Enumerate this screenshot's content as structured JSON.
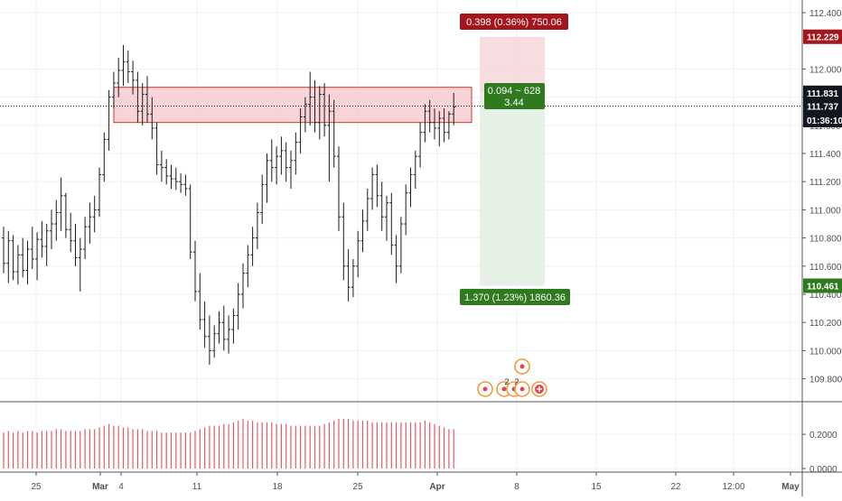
{
  "colors": {
    "background": "#ffffff",
    "grid": "#eef0f3",
    "bar": "#1b1b1b",
    "zone_fill": "#f5c6cb",
    "zone_stroke": "#c0392b",
    "stop_fill": "#f4d7da",
    "target_fill": "#e3efe2",
    "stop_label": "#a5161c",
    "target_label": "#2f7a1f",
    "price_tag_dark": "#131722",
    "price_tag_red": "#a5161c",
    "price_tag_green": "#2f7a1f",
    "volume": "#e05c6a",
    "axis_text": "#4a4f58",
    "event_icon": "#f29a3a"
  },
  "chart_data": {
    "type": "bar",
    "subtype": "ohlc",
    "grid": true,
    "price_axis": {
      "position": "right",
      "ticks": [
        "112.400",
        "112.000",
        "111.800",
        "111.600",
        "111.400",
        "111.200",
        "111.000",
        "110.800",
        "110.600",
        "110.400",
        "110.200",
        "110.000",
        "109.800"
      ],
      "range": [
        109.65,
        112.49
      ]
    },
    "volume_axis": {
      "ticks": [
        "0.2000",
        "0.0000"
      ],
      "range": [
        0,
        0.38
      ]
    },
    "time_axis": {
      "ticks": [
        "25",
        "Mar",
        "4",
        "11",
        "18",
        "25",
        "Apr",
        "8",
        "15",
        "22",
        "12:00",
        "May"
      ],
      "bold_ticks": [
        "Mar",
        "Apr",
        "May"
      ]
    },
    "price_labels": [
      {
        "text": "112.229",
        "value": 112.229,
        "style": "red"
      },
      {
        "text": "111.831",
        "value": 111.831,
        "style": "dark"
      },
      {
        "text": "111.737",
        "value": 111.737,
        "style": "dark"
      },
      {
        "text": "01:36:10",
        "value": 111.6,
        "style": "dark"
      },
      {
        "text": "110.461",
        "value": 110.461,
        "style": "green"
      }
    ],
    "current_price": 111.737,
    "resistance_zone": {
      "low": 111.62,
      "high": 111.87
    },
    "position": {
      "entry": 111.831,
      "stop": 112.229,
      "target": 110.461,
      "stop_label": "0.398 (0.36%) 750.06",
      "target_label": "1.370 (1.23%) 1860.36",
      "center_label_line1": "0.094 ~ 628",
      "center_label_line2": "3.44"
    },
    "events": [
      {
        "kind": "flag",
        "count": ""
      },
      {
        "kind": "flag",
        "count": "2"
      },
      {
        "kind": "flag",
        "count": "2"
      },
      {
        "kind": "flag",
        "count": ""
      },
      {
        "kind": "flag",
        "count": ""
      },
      {
        "kind": "plus",
        "count": ""
      }
    ],
    "ohlc": [
      [
        110.8,
        110.88,
        110.55,
        110.62
      ],
      [
        110.62,
        110.85,
        110.48,
        110.78
      ],
      [
        110.78,
        110.82,
        110.5,
        110.56
      ],
      [
        110.56,
        110.75,
        110.47,
        110.68
      ],
      [
        110.68,
        110.8,
        110.52,
        110.57
      ],
      [
        110.57,
        110.78,
        110.47,
        110.72
      ],
      [
        110.72,
        110.88,
        110.58,
        110.65
      ],
      [
        110.65,
        110.84,
        110.5,
        110.79
      ],
      [
        110.79,
        110.92,
        110.66,
        110.74
      ],
      [
        110.74,
        110.9,
        110.6,
        110.85
      ],
      [
        110.85,
        111.0,
        110.72,
        110.9
      ],
      [
        110.9,
        111.07,
        110.78,
        110.98
      ],
      [
        110.98,
        111.23,
        110.85,
        111.1
      ],
      [
        111.1,
        111.12,
        110.8,
        110.86
      ],
      [
        110.86,
        110.98,
        110.7,
        110.78
      ],
      [
        110.78,
        110.9,
        110.6,
        110.66
      ],
      [
        110.66,
        110.8,
        110.42,
        110.72
      ],
      [
        110.72,
        110.95,
        110.65,
        110.88
      ],
      [
        110.88,
        111.05,
        110.76,
        110.95
      ],
      [
        110.95,
        111.1,
        110.84,
        111.0
      ],
      [
        111.0,
        111.3,
        110.95,
        111.25
      ],
      [
        111.25,
        111.55,
        111.2,
        111.5
      ],
      [
        111.5,
        111.85,
        111.42,
        111.8
      ],
      [
        111.8,
        111.98,
        111.72,
        111.9
      ],
      [
        111.9,
        112.08,
        111.8,
        111.99
      ],
      [
        111.99,
        112.17,
        111.88,
        112.05
      ],
      [
        112.05,
        112.13,
        111.9,
        111.98
      ],
      [
        111.98,
        112.06,
        111.82,
        111.92
      ],
      [
        111.92,
        111.98,
        111.62,
        111.7
      ],
      [
        111.7,
        111.9,
        111.6,
        111.82
      ],
      [
        111.82,
        111.95,
        111.62,
        111.68
      ],
      [
        111.68,
        111.8,
        111.5,
        111.58
      ],
      [
        111.58,
        111.62,
        111.25,
        111.32
      ],
      [
        111.32,
        111.42,
        111.2,
        111.3
      ],
      [
        111.3,
        111.36,
        111.18,
        111.24
      ],
      [
        111.24,
        111.32,
        111.15,
        111.22
      ],
      [
        111.22,
        111.3,
        111.14,
        111.2
      ],
      [
        111.2,
        111.26,
        111.12,
        111.18
      ],
      [
        111.18,
        111.25,
        111.1,
        111.15
      ],
      [
        111.15,
        111.18,
        110.65,
        110.7
      ],
      [
        110.7,
        110.78,
        110.35,
        110.42
      ],
      [
        110.42,
        110.55,
        110.15,
        110.22
      ],
      [
        110.22,
        110.35,
        110.02,
        110.1
      ],
      [
        110.1,
        110.25,
        109.9,
        110.0
      ],
      [
        110.0,
        110.18,
        109.95,
        110.12
      ],
      [
        110.12,
        110.28,
        110.05,
        110.2
      ],
      [
        110.2,
        110.32,
        110.0,
        110.08
      ],
      [
        110.08,
        110.25,
        109.98,
        110.15
      ],
      [
        110.15,
        110.3,
        110.05,
        110.25
      ],
      [
        110.25,
        110.48,
        110.15,
        110.4
      ],
      [
        110.4,
        110.62,
        110.3,
        110.55
      ],
      [
        110.55,
        110.75,
        110.45,
        110.68
      ],
      [
        110.68,
        110.88,
        110.6,
        110.8
      ],
      [
        110.8,
        111.05,
        110.72,
        110.98
      ],
      [
        110.98,
        111.25,
        110.9,
        111.18
      ],
      [
        111.18,
        111.4,
        111.05,
        111.35
      ],
      [
        111.35,
        111.5,
        111.2,
        111.3
      ],
      [
        111.3,
        111.45,
        111.18,
        111.38
      ],
      [
        111.38,
        111.52,
        111.25,
        111.42
      ],
      [
        111.42,
        111.48,
        111.2,
        111.3
      ],
      [
        111.3,
        111.42,
        111.15,
        111.35
      ],
      [
        111.35,
        111.55,
        111.25,
        111.48
      ],
      [
        111.48,
        111.72,
        111.4,
        111.66
      ],
      [
        111.66,
        111.8,
        111.55,
        111.75
      ],
      [
        111.75,
        111.98,
        111.6,
        111.8
      ],
      [
        111.8,
        111.92,
        111.55,
        111.62
      ],
      [
        111.62,
        111.88,
        111.5,
        111.82
      ],
      [
        111.82,
        111.9,
        111.52,
        111.6
      ],
      [
        111.6,
        111.82,
        111.2,
        111.7
      ],
      [
        111.7,
        111.78,
        111.3,
        111.38
      ],
      [
        111.38,
        111.45,
        110.85,
        110.95
      ],
      [
        110.95,
        111.05,
        110.5,
        110.6
      ],
      [
        110.6,
        110.72,
        110.35,
        110.45
      ],
      [
        110.45,
        110.65,
        110.38,
        110.6
      ],
      [
        110.6,
        110.85,
        110.52,
        110.78
      ],
      [
        110.78,
        111.0,
        110.7,
        110.92
      ],
      [
        110.92,
        111.15,
        110.85,
        111.08
      ],
      [
        111.08,
        111.3,
        111.0,
        111.25
      ],
      [
        111.25,
        111.32,
        111.02,
        111.1
      ],
      [
        111.1,
        111.2,
        110.85,
        110.95
      ],
      [
        110.95,
        111.1,
        110.78,
        111.05
      ],
      [
        111.05,
        111.12,
        110.68,
        110.75
      ],
      [
        110.75,
        110.82,
        110.48,
        110.6
      ],
      [
        110.6,
        110.95,
        110.55,
        110.9
      ],
      [
        110.9,
        111.18,
        110.82,
        111.12
      ],
      [
        111.12,
        111.3,
        111.02,
        111.25
      ],
      [
        111.25,
        111.42,
        111.15,
        111.38
      ],
      [
        111.38,
        111.62,
        111.3,
        111.55
      ],
      [
        111.55,
        111.75,
        111.48,
        111.7
      ],
      [
        111.7,
        111.78,
        111.55,
        111.62
      ],
      [
        111.62,
        111.72,
        111.5,
        111.58
      ],
      [
        111.58,
        111.7,
        111.45,
        111.65
      ],
      [
        111.65,
        111.72,
        111.48,
        111.55
      ],
      [
        111.55,
        111.7,
        111.5,
        111.68
      ],
      [
        111.68,
        111.83,
        111.6,
        111.73
      ]
    ],
    "volume": [
      0.21,
      0.22,
      0.21,
      0.22,
      0.21,
      0.22,
      0.22,
      0.21,
      0.22,
      0.22,
      0.22,
      0.23,
      0.23,
      0.22,
      0.22,
      0.22,
      0.22,
      0.23,
      0.23,
      0.23,
      0.24,
      0.25,
      0.26,
      0.25,
      0.25,
      0.24,
      0.24,
      0.23,
      0.23,
      0.23,
      0.22,
      0.22,
      0.22,
      0.21,
      0.21,
      0.21,
      0.21,
      0.21,
      0.21,
      0.21,
      0.22,
      0.23,
      0.24,
      0.25,
      0.25,
      0.25,
      0.26,
      0.26,
      0.27,
      0.28,
      0.29,
      0.28,
      0.28,
      0.27,
      0.27,
      0.27,
      0.27,
      0.26,
      0.26,
      0.26,
      0.25,
      0.25,
      0.25,
      0.25,
      0.25,
      0.25,
      0.25,
      0.26,
      0.27,
      0.28,
      0.29,
      0.29,
      0.29,
      0.28,
      0.28,
      0.28,
      0.28,
      0.27,
      0.27,
      0.27,
      0.27,
      0.27,
      0.27,
      0.27,
      0.27,
      0.27,
      0.27,
      0.27,
      0.28,
      0.27,
      0.26,
      0.25,
      0.24,
      0.23,
      0.23
    ]
  }
}
